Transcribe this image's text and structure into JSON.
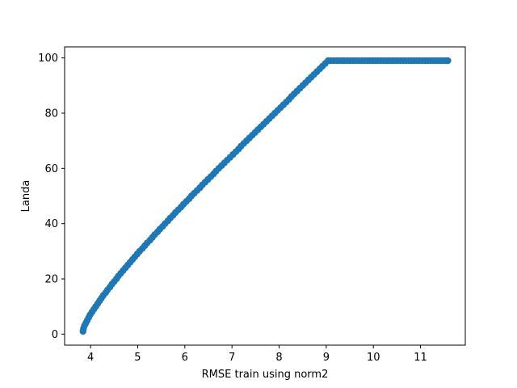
{
  "chart_data": {
    "type": "scatter",
    "title": "",
    "xlabel": "RMSE train using norm2",
    "ylabel": "Landa",
    "xlim": [
      3.45,
      11.95
    ],
    "ylim": [
      -4,
      104
    ],
    "xticks": [
      4,
      5,
      6,
      7,
      8,
      9,
      10,
      11
    ],
    "yticks": [
      0,
      20,
      40,
      60,
      80,
      100
    ],
    "xtick_labels": [
      "4",
      "5",
      "6",
      "7",
      "8",
      "9",
      "10",
      "11"
    ],
    "ytick_labels": [
      "0",
      "20",
      "40",
      "60",
      "80",
      "100"
    ],
    "grid": false,
    "legend": "none",
    "marker_color": "#1f77b4",
    "series": [
      {
        "x": [
          3.84,
          3.85,
          3.87,
          3.9,
          3.93,
          3.96,
          3.99,
          4.03,
          4.07,
          4.11,
          4.15,
          4.19,
          4.23,
          4.27,
          4.32,
          4.36,
          4.41,
          4.45,
          4.5,
          4.55,
          4.59,
          4.64,
          4.69,
          4.74,
          4.79,
          4.84,
          4.89,
          4.94,
          4.99,
          5.04,
          5.1,
          5.15,
          5.2,
          5.26,
          5.31,
          5.36,
          5.42,
          5.47,
          5.53,
          5.58,
          5.64,
          5.69,
          5.75,
          5.8,
          5.86,
          5.92,
          5.97,
          6.03,
          6.09,
          6.14,
          6.2,
          6.26,
          6.32,
          6.37,
          6.43,
          6.49,
          6.55,
          6.61,
          6.66,
          6.72,
          6.78,
          6.84,
          6.9,
          6.96,
          7.02,
          7.08,
          7.14,
          7.19,
          7.25,
          7.31,
          7.37,
          7.43,
          7.49,
          7.55,
          7.61,
          7.67,
          7.73,
          7.79,
          7.85,
          7.91,
          7.97,
          8.03,
          8.09,
          8.15,
          8.21,
          8.26,
          8.32,
          8.38,
          8.44,
          8.5,
          8.56,
          8.62,
          8.68,
          8.74,
          8.8,
          8.86,
          8.92,
          8.98,
          9.04,
          9.1,
          9.16,
          9.22,
          9.28,
          9.34,
          9.39,
          9.45,
          9.51,
          9.57,
          9.63,
          9.69,
          9.75,
          9.81,
          9.87,
          9.93,
          9.99,
          10.04,
          10.1,
          10.16,
          10.22,
          10.28,
          10.34,
          10.4,
          10.46,
          10.51,
          10.57,
          10.63,
          10.69,
          10.75,
          10.81,
          10.86,
          10.92,
          10.98,
          11.04,
          11.1,
          11.15,
          11.21,
          11.27,
          11.33,
          11.39,
          11.44,
          11.5,
          11.56,
          11.58
        ],
        "y": [
          1,
          2,
          3,
          4,
          5,
          6,
          7,
          8,
          9,
          10,
          11,
          12,
          13,
          14,
          15,
          16,
          17,
          18,
          19,
          20,
          21,
          22,
          23,
          24,
          25,
          26,
          27,
          28,
          29,
          30,
          31,
          32,
          33,
          34,
          35,
          36,
          37,
          38,
          39,
          40,
          41,
          42,
          43,
          44,
          45,
          46,
          47,
          48,
          49,
          50,
          51,
          52,
          53,
          54,
          55,
          56,
          57,
          58,
          59,
          60,
          61,
          62,
          63,
          64,
          65,
          66,
          67,
          68,
          69,
          70,
          71,
          72,
          73,
          74,
          75,
          76,
          77,
          78,
          79,
          80,
          81,
          82,
          83,
          84,
          85,
          86,
          87,
          88,
          89,
          90,
          91,
          92,
          93,
          94,
          95,
          96,
          97,
          98,
          99,
          99,
          99,
          99,
          99,
          99,
          99,
          99,
          99,
          99,
          99,
          99,
          99,
          99,
          99,
          99,
          99,
          99,
          99,
          99,
          99,
          99,
          99,
          99,
          99,
          99,
          99,
          99,
          99,
          99,
          99,
          99,
          99,
          99,
          99,
          99,
          99,
          99,
          99,
          99,
          99,
          99,
          99,
          99,
          99
        ]
      }
    ]
  }
}
